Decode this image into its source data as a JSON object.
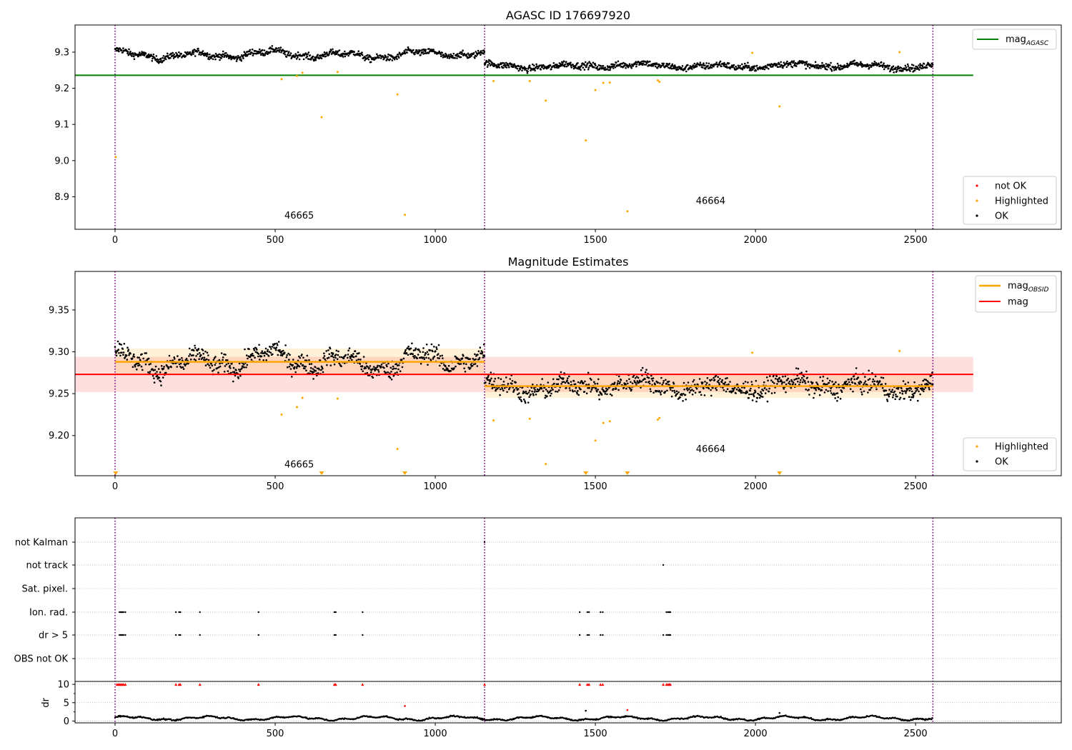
{
  "chart_data": [
    {
      "type": "scatter",
      "title": "AGASC ID 176697920",
      "xlim": [
        -125,
        2955
      ],
      "ylim": [
        8.81,
        9.375
      ],
      "xticks": [
        "0",
        "500",
        "1000",
        "1500",
        "2000",
        "2500"
      ],
      "xtick_values": [
        0,
        500,
        1000,
        1500,
        2000,
        2500
      ],
      "yticks": [
        "8.9",
        "9.0",
        "9.1",
        "9.2",
        "9.3"
      ],
      "ytick_values": [
        8.9,
        9.0,
        9.1,
        9.2,
        9.3
      ],
      "obsid_boundaries": [
        0,
        1154,
        2554
      ],
      "obsid_labels": [
        {
          "text": "46665",
          "x": 575,
          "y": 8.84
        },
        {
          "text": "46664",
          "x": 1860,
          "y": 8.88
        }
      ],
      "mag_line": {
        "name_base": "mag",
        "name_sub": "AGASC",
        "value": 9.236,
        "x_range": [
          -125,
          2680
        ],
        "color": "#008000"
      },
      "ok_segments": [
        {
          "x0": 0,
          "x1": 1154,
          "base": 9.293,
          "wave": 0.014,
          "noise": 0.009
        },
        {
          "x0": 1154,
          "x1": 2554,
          "base": 9.262,
          "wave": 0.009,
          "noise": 0.009
        }
      ],
      "highlighted": [
        [
          2,
          9.01
        ],
        [
          520,
          9.225
        ],
        [
          568,
          9.234
        ],
        [
          585,
          9.243
        ],
        [
          645,
          9.12
        ],
        [
          695,
          9.245
        ],
        [
          882,
          9.183
        ],
        [
          905,
          8.85
        ],
        [
          1182,
          9.22
        ],
        [
          1295,
          9.22
        ],
        [
          1345,
          9.166
        ],
        [
          1470,
          9.056
        ],
        [
          1500,
          9.195
        ],
        [
          1525,
          9.215
        ],
        [
          1545,
          9.216
        ],
        [
          1600,
          8.86
        ],
        [
          1695,
          9.222
        ],
        [
          1700,
          9.218
        ],
        [
          1990,
          9.298
        ],
        [
          2075,
          9.15
        ],
        [
          2450,
          9.3
        ]
      ],
      "legends": [
        {
          "position": "upper right",
          "entries": [
            "mag_AGASC"
          ]
        },
        {
          "position": "lower right",
          "entries": [
            "not OK",
            "Highlighted",
            "OK"
          ]
        }
      ],
      "legend_labels": {
        "not_ok": "not OK",
        "highlighted": "Highlighted",
        "ok": "OK",
        "mag_base": "mag",
        "mag_sub": "AGASC"
      }
    },
    {
      "type": "scatter",
      "title": "Magnitude Estimates",
      "xlim": [
        -125,
        2955
      ],
      "ylim": [
        9.152,
        9.396
      ],
      "xticks": [
        "0",
        "500",
        "1000",
        "1500",
        "2000",
        "2500"
      ],
      "xtick_values": [
        0,
        500,
        1000,
        1500,
        2000,
        2500
      ],
      "yticks": [
        "9.20",
        "9.25",
        "9.30",
        "9.35"
      ],
      "ytick_values": [
        9.2,
        9.25,
        9.3,
        9.35
      ],
      "obsid_boundaries": [
        0,
        1154,
        2554
      ],
      "obsid_labels": [
        {
          "text": "46665",
          "x": 575,
          "y": 9.162
        },
        {
          "text": "46664",
          "x": 1860,
          "y": 9.18
        }
      ],
      "mag_line": {
        "name": "mag",
        "value": 9.273,
        "band": [
          9.252,
          9.294
        ],
        "x_range": [
          -125,
          2680
        ],
        "color": "#ff0000"
      },
      "mag_obsid": [
        {
          "x0": 0,
          "x1": 1154,
          "value": 9.288,
          "band": [
            9.272,
            9.304
          ]
        },
        {
          "x0": 1154,
          "x1": 2554,
          "value": 9.259,
          "band": [
            9.245,
            9.273
          ]
        }
      ],
      "ok_segments": [
        {
          "x0": 0,
          "x1": 1154,
          "base": 9.289,
          "wave": 0.016,
          "noise": 0.011
        },
        {
          "x0": 1154,
          "x1": 2554,
          "base": 9.259,
          "wave": 0.01,
          "noise": 0.011
        }
      ],
      "highlighted": [
        [
          520,
          9.225
        ],
        [
          568,
          9.234
        ],
        [
          585,
          9.245
        ],
        [
          695,
          9.244
        ],
        [
          882,
          9.184
        ],
        [
          1182,
          9.218
        ],
        [
          1295,
          9.22
        ],
        [
          1345,
          9.166
        ],
        [
          1500,
          9.194
        ],
        [
          1525,
          9.215
        ],
        [
          1545,
          9.217
        ],
        [
          1695,
          9.219
        ],
        [
          1700,
          9.221
        ],
        [
          1990,
          9.299
        ],
        [
          2450,
          9.301
        ]
      ],
      "below_range_markers": [
        2,
        645,
        905,
        1470,
        1600,
        2075
      ],
      "legends": [
        {
          "position": "upper right",
          "entries": [
            "mag_OBSID",
            "mag"
          ]
        },
        {
          "position": "lower right",
          "entries": [
            "Highlighted",
            "OK"
          ]
        }
      ],
      "legend_labels": {
        "highlighted": "Highlighted",
        "ok": "OK",
        "mag": "mag",
        "mag_obsid_base": "mag",
        "mag_obsid_sub": "OBSID"
      }
    },
    {
      "type": "scatter",
      "xlim": [
        -125,
        2955
      ],
      "xticks": [
        "0",
        "500",
        "1000",
        "1500",
        "2000",
        "2500"
      ],
      "xtick_values": [
        0,
        500,
        1000,
        1500,
        2000,
        2500
      ],
      "obsid_boundaries": [
        0,
        1154,
        2554
      ],
      "flag_categories": [
        "not Kalman",
        "not track",
        "Sat. pixel.",
        "Ion. rad.",
        "dr > 5",
        "OBS not OK"
      ],
      "flag_points": {
        "not Kalman": [
          1154
        ],
        "not track": [
          1712
        ],
        "Sat. pixel.": [],
        "Ion. rad.": [
          14,
          18,
          22,
          26,
          32,
          190,
          200,
          204,
          265,
          448,
          685,
          689,
          773,
          1451,
          1475,
          1480,
          1516,
          1523,
          1722,
          1727,
          1731,
          1734
        ],
        "dr > 5": [
          14,
          18,
          22,
          26,
          32,
          190,
          200,
          204,
          265,
          448,
          685,
          689,
          773,
          1451,
          1475,
          1480,
          1516,
          1523,
          1712,
          1722,
          1727,
          1731,
          1734
        ],
        "OBS not OK": []
      },
      "dr": {
        "ylabel": "dr",
        "ylim": [
          -0.5,
          10.8
        ],
        "yticks": [
          "0",
          "5",
          "10"
        ],
        "ytick_values": [
          0,
          5,
          10
        ],
        "clip_value": 10,
        "clipped_x": [
          6,
          10,
          14,
          18,
          22,
          26,
          32,
          190,
          200,
          204,
          265,
          448,
          685,
          689,
          773,
          1154,
          1451,
          1475,
          1480,
          1516,
          1523,
          1712,
          1722,
          1727,
          1731,
          1734
        ],
        "outliers": [
          [
            905,
            4.1,
            "red"
          ],
          [
            1600,
            3.0,
            "red"
          ],
          [
            1470,
            2.8,
            "black"
          ],
          [
            2075,
            2.2,
            "black"
          ]
        ],
        "typical_range": [
          0,
          2
        ]
      }
    }
  ],
  "colors": {
    "ok": "#000000",
    "highlighted": "#ffa500",
    "not_ok": "#ff0000",
    "obsid_line": "#800080",
    "agasc_line": "#008000",
    "mag_line": "#ff0000",
    "mag_obsid_line": "#ffa500"
  }
}
